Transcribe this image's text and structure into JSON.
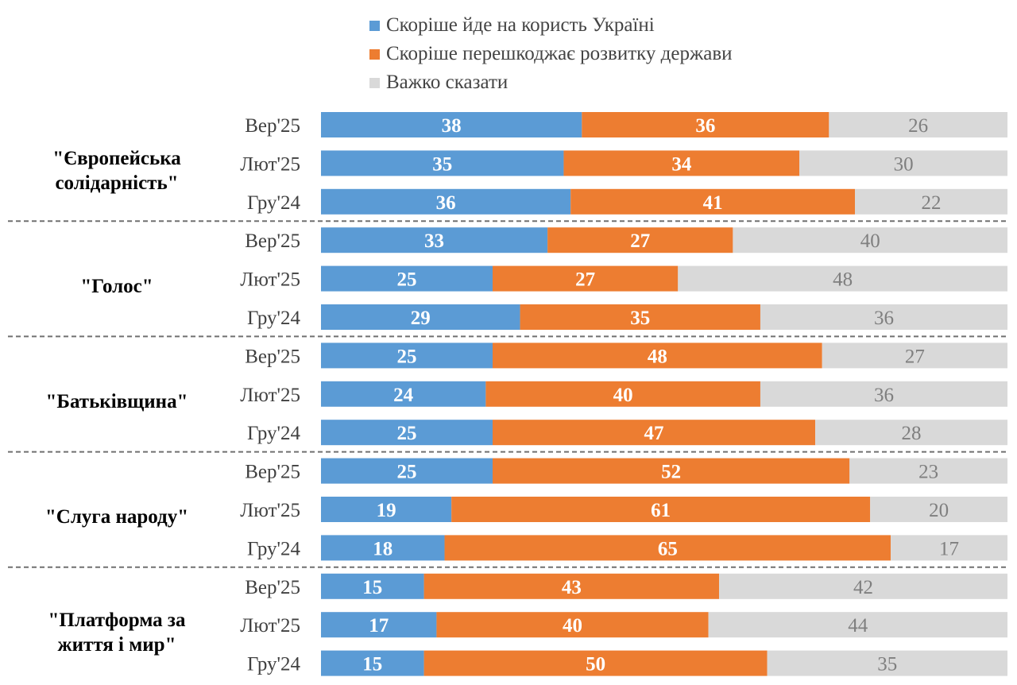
{
  "chart_data": {
    "type": "bar",
    "orientation": "horizontal",
    "stacked": true,
    "unit": "%",
    "legend": [
      {
        "name": "Скоріше йде на користь Україні",
        "color": "#5b9bd5"
      },
      {
        "name": "Скоріше перешкоджає розвитку держави",
        "color": "#ed7d31"
      },
      {
        "name": "Важко сказати",
        "color": "#d9d9d9"
      }
    ],
    "value_label_colors": [
      "#ffffff",
      "#ffffff",
      "#7f7f7f"
    ],
    "groups": [
      {
        "name": "\"Європейська солідарність\"",
        "name_lines": [
          "\"Європейська",
          "солідарність\""
        ],
        "rows": [
          {
            "period": "Вер'25",
            "values": [
              38,
              36,
              26
            ]
          },
          {
            "period": "Лют'25",
            "values": [
              35,
              34,
              30
            ]
          },
          {
            "period": "Гру'24",
            "values": [
              36,
              41,
              22
            ]
          }
        ]
      },
      {
        "name": "\"Голос\"",
        "name_lines": [
          "\"Голос\""
        ],
        "rows": [
          {
            "period": "Вер'25",
            "values": [
              33,
              27,
              40
            ]
          },
          {
            "period": "Лют'25",
            "values": [
              25,
              27,
              48
            ]
          },
          {
            "period": "Гру'24",
            "values": [
              29,
              35,
              36
            ]
          }
        ]
      },
      {
        "name": "\"Батьківщина\"",
        "name_lines": [
          "\"Батьківщина\""
        ],
        "rows": [
          {
            "period": "Вер'25",
            "values": [
              25,
              48,
              27
            ]
          },
          {
            "period": "Лют'25",
            "values": [
              24,
              40,
              36
            ]
          },
          {
            "period": "Гру'24",
            "values": [
              25,
              47,
              28
            ]
          }
        ]
      },
      {
        "name": "\"Слуга народу\"",
        "name_lines": [
          "\"Слуга народу\""
        ],
        "rows": [
          {
            "period": "Вер'25",
            "values": [
              25,
              52,
              23
            ]
          },
          {
            "period": "Лют'25",
            "values": [
              19,
              61,
              20
            ]
          },
          {
            "period": "Гру'24",
            "values": [
              18,
              65,
              17
            ]
          }
        ]
      },
      {
        "name": "\"Платформа за життя і мир\"",
        "name_lines": [
          "\"Платформа за",
          "життя і мир\""
        ],
        "rows": [
          {
            "period": "Вер'25",
            "values": [
              15,
              43,
              42
            ]
          },
          {
            "period": "Лют'25",
            "values": [
              17,
              40,
              44
            ]
          },
          {
            "period": "Гру'24",
            "values": [
              15,
              50,
              35
            ]
          }
        ]
      }
    ]
  }
}
